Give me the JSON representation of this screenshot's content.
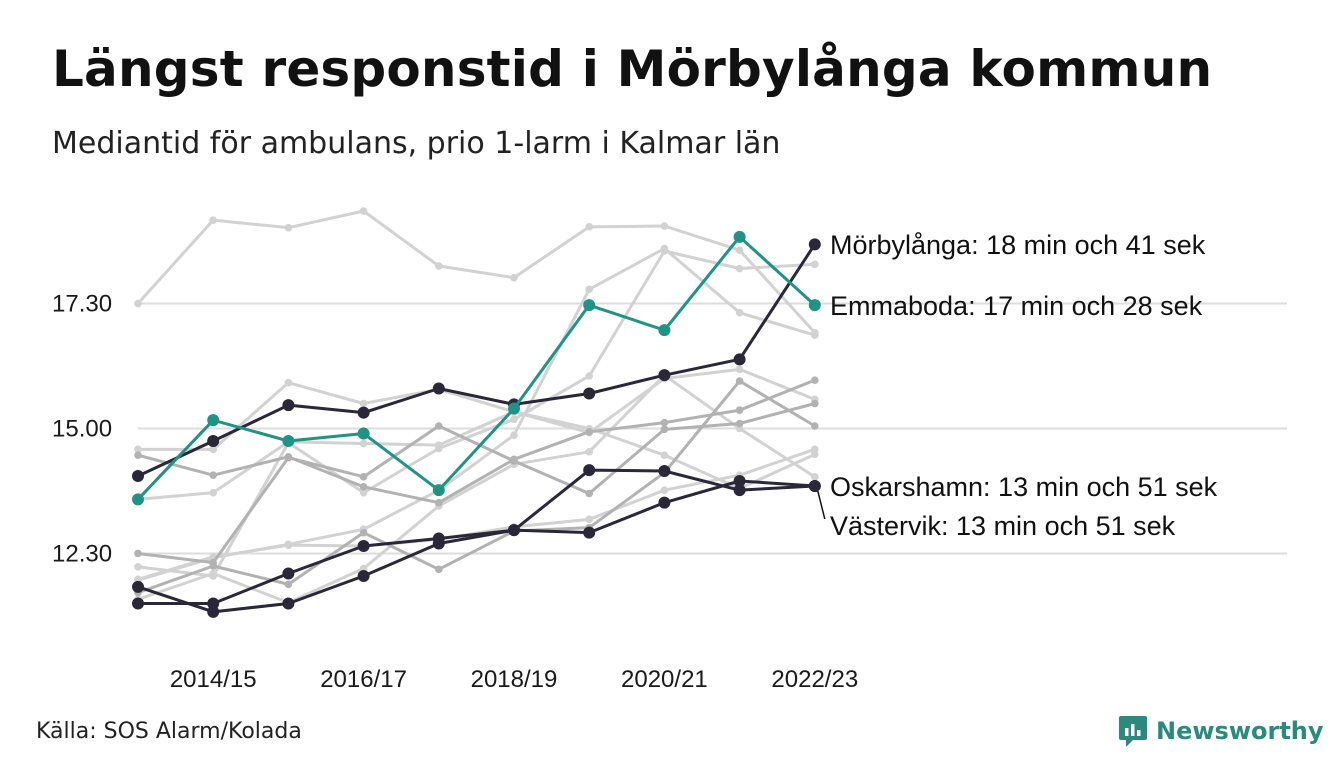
{
  "title": "Längst responstid i Mörbylånga kommun",
  "subtitle": "Mediantid för ambulans, prio 1-larm i Kalmar län",
  "source": "Källa: SOS Alarm/Kolada",
  "brand": "Newsworthy",
  "colors": {
    "highlight_dark": "#2a2838",
    "highlight_teal": "#1f9385",
    "background_light": "#d2d2d2",
    "background_mid": "#b2b2b2",
    "grid": "#dddddd",
    "brand": "#2a8a7d"
  },
  "chart_data": {
    "type": "line",
    "x": [
      "2013/14",
      "2014/15",
      "2015/16",
      "2016/17",
      "2017/18",
      "2018/19",
      "2019/20",
      "2020/21",
      "2021/22",
      "2022/23"
    ],
    "x_tick_labels": [
      "2014/15",
      "2016/17",
      "2018/19",
      "2020/21",
      "2022/23"
    ],
    "y_ticks": [
      {
        "value": 750,
        "label": "12.30"
      },
      {
        "value": 900,
        "label": "15.00"
      },
      {
        "value": 1050,
        "label": "17.30"
      }
    ],
    "ylim": [
      640,
      1170
    ],
    "grid": "horizontal",
    "highlighted_series": [
      {
        "label": "Mörbylånga: 18 min och 41 sek",
        "color": "#2a2838",
        "values": [
          843,
          885,
          928,
          919,
          948,
          929,
          942,
          964,
          983,
          1121
        ]
      },
      {
        "label": "Emmaboda: 17 min och 28 sek",
        "color": "#1f9385",
        "values": [
          815,
          910,
          885,
          894,
          826,
          924,
          1048,
          1018,
          1130,
          1048
        ]
      },
      {
        "label": "Oskarshamn: 13 min och 51 sek",
        "color": "#2a2838",
        "values": [
          690,
          690,
          726,
          759,
          768,
          778,
          775,
          811,
          837,
          831
        ]
      },
      {
        "label": "Västervik: 13 min och 51 sek",
        "color": "#2a2838",
        "values": [
          710,
          680,
          690,
          723,
          762,
          778,
          850,
          849,
          826,
          831
        ]
      }
    ],
    "background_series": [
      {
        "color": "#d2d2d2",
        "values": [
          1050,
          1150,
          1141,
          1161,
          1095,
          1081,
          1142,
          1143,
          1114,
          1015
        ]
      },
      {
        "color": "#d2d2d2",
        "values": [
          875,
          875,
          955,
          930,
          947,
          920,
          895,
          960,
          971,
          935
        ]
      },
      {
        "color": "#d2d2d2",
        "values": [
          815,
          823,
          884,
          882,
          880,
          920,
          900,
          868,
          828,
          869
        ]
      },
      {
        "color": "#d2d2d2",
        "values": [
          734,
          723,
          883,
          823,
          876,
          911,
          963,
          1113,
          1092,
          1097
        ]
      },
      {
        "color": "#d2d2d2",
        "values": [
          695,
          726,
          691,
          732,
          807,
          857,
          872,
          964,
          900,
          842
        ]
      },
      {
        "color": "#d2d2d2",
        "values": [
          718,
          745,
          761,
          779,
          826,
          892,
          1067,
          1116,
          1039,
          1012
        ]
      },
      {
        "color": "#d2d2d2",
        "values": [
          719,
          746,
          760,
          759,
          767,
          782,
          791,
          826,
          844,
          875
        ]
      },
      {
        "color": "#b2b2b2",
        "values": [
          868,
          844,
          866,
          830,
          811,
          863,
          896,
          907,
          922,
          958
        ]
      },
      {
        "color": "#b2b2b2",
        "values": [
          750,
          739,
          865,
          842,
          903,
          861,
          822,
          899,
          906,
          930
        ]
      },
      {
        "color": "#b2b2b2",
        "values": [
          703,
          735,
          713,
          775,
          731,
          777,
          781,
          847,
          957,
          903
        ]
      }
    ]
  }
}
